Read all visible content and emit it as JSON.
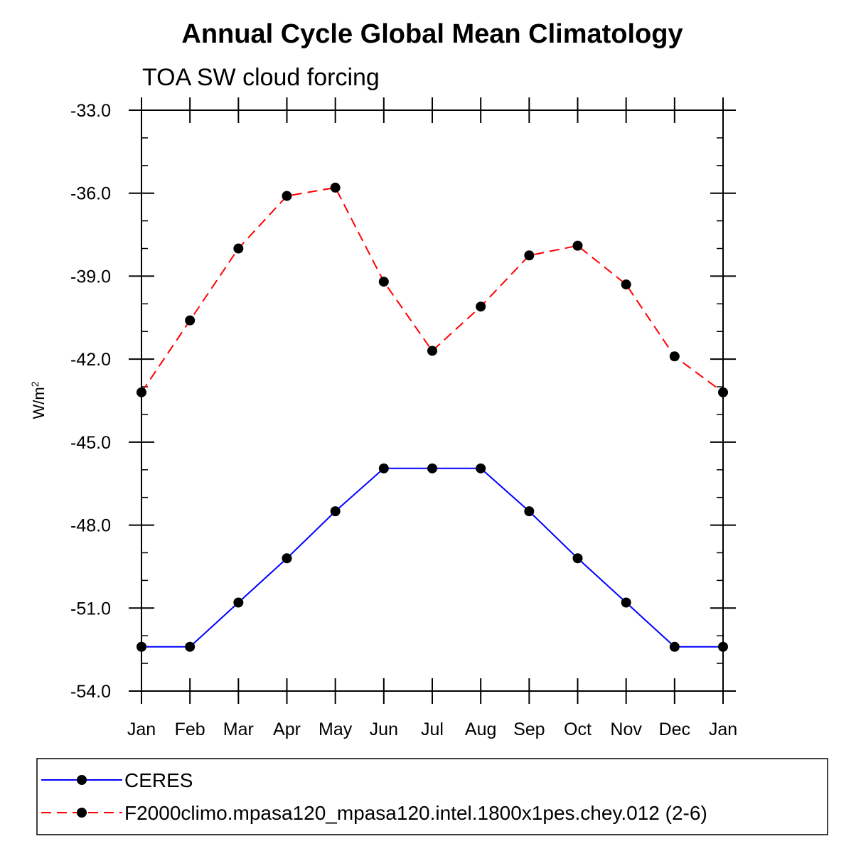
{
  "chart_data": {
    "type": "line",
    "title": "Annual Cycle Global Mean Climatology",
    "subtitle": "TOA SW cloud forcing",
    "ylabel": "W/m",
    "ylabel_superscript": "2",
    "xlabel": "",
    "categories": [
      "Jan",
      "Feb",
      "Mar",
      "Apr",
      "May",
      "Jun",
      "Jul",
      "Aug",
      "Sep",
      "Oct",
      "Nov",
      "Dec",
      "Jan"
    ],
    "ylim": [
      -54.0,
      -33.0
    ],
    "yticks": [
      -54.0,
      -51.0,
      -48.0,
      -45.0,
      -42.0,
      -39.0,
      -36.0,
      -33.0
    ],
    "ytick_labels": [
      "-54.0",
      "-51.0",
      "-48.0",
      "-45.0",
      "-42.0",
      "-39.0",
      "-36.0",
      "-33.0"
    ],
    "y_minor_step": 1.0,
    "series": [
      {
        "name": "CERES",
        "color": "#0000ff",
        "dash": "solid",
        "values": [
          -52.4,
          -52.4,
          -50.8,
          -49.2,
          -47.5,
          -45.95,
          -45.95,
          -45.95,
          -47.5,
          -49.2,
          -50.8,
          -52.4,
          -52.4
        ]
      },
      {
        "name": "F2000climo.mpasa120_mpasa120.intel.1800x1pes.chey.012 (2-6)",
        "color": "#ff0000",
        "dash": "dashed",
        "values": [
          -43.2,
          -40.6,
          -38.0,
          -36.1,
          -35.8,
          -39.2,
          -41.7,
          -40.1,
          -38.25,
          -37.9,
          -39.3,
          -41.9,
          -43.2
        ]
      }
    ],
    "marker_color": "#000000"
  }
}
